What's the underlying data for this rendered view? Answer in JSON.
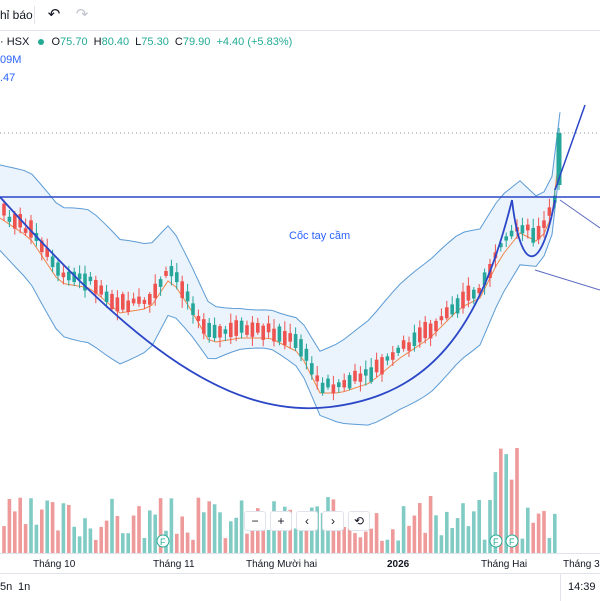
{
  "toolbar": {
    "indicators_label": "hỉ báo",
    "undo_icon": "undo-icon",
    "redo_icon": "redo-icon"
  },
  "legend": {
    "symbol": "· HSX",
    "open_key": "O",
    "open": "75.70",
    "high_key": "H",
    "high": "80.40",
    "low_key": "L",
    "low": "75.30",
    "close_key": "C",
    "close": "79.90",
    "change": "+4.40 (+5.83%)",
    "volume_value": "09M",
    "indicator_value": ".47"
  },
  "annotation": {
    "label": "Cốc tay cầm"
  },
  "zoom_controls": {
    "minus": "−",
    "plus": "+",
    "left": "‹",
    "right": "›",
    "reset": "⟲"
  },
  "time_axis": {
    "labels": [
      "Tháng 10",
      "Tháng 11",
      "Tháng Mười hai",
      "2026",
      "Tháng Hai",
      "Tháng 3"
    ]
  },
  "bottom_bar": {
    "range_5d": "5n",
    "range_1d": "1n",
    "clock": "14:39"
  },
  "colors": {
    "up": "#26a69a",
    "down": "#ef5350",
    "vol_up": "#80cbc4",
    "vol_down": "#ef9a9a",
    "bb_line": "#5b9bd5",
    "bb_fill": "#e3f0fb",
    "ma": "#f0854a",
    "drawing": "#2b47c7"
  },
  "chart_data": {
    "type": "candlestick",
    "x_labels": [
      "Tháng 10",
      "Tháng 11",
      "Tháng Mười hai",
      "2026",
      "Tháng Hai",
      "Tháng 3"
    ],
    "overlays": [
      "Bollinger Bands",
      "Moving Average",
      "Volume"
    ],
    "last_bar": {
      "open": 75.7,
      "high": 80.4,
      "low": 75.3,
      "close": 79.9,
      "change": 4.4,
      "change_pct": 5.83
    },
    "pattern_annotation": "Cốc tay cầm",
    "event_markers": [
      "F",
      "F",
      "F"
    ]
  }
}
